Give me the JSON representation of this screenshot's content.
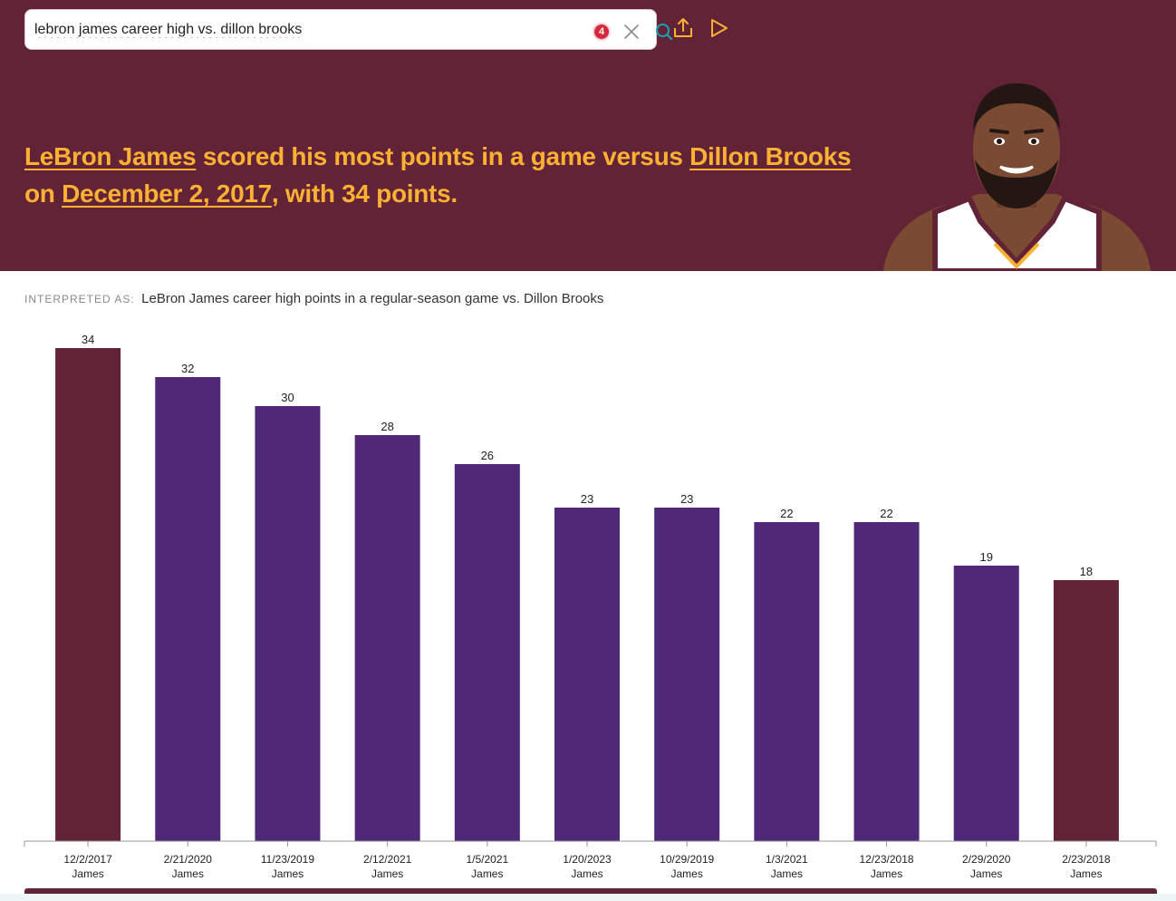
{
  "colors": {
    "hero_bg": "#632336",
    "accent": "#fcb034",
    "highlight_bar": "#632336",
    "bar": "#4f2877",
    "badge": "#d6283b",
    "search_icon": "#17a3b8"
  },
  "search": {
    "query": "lebron james career high vs. dillon brooks",
    "badge_count": "4",
    "clear_icon": "close-icon",
    "search_icon": "search-icon"
  },
  "toolbar": {
    "share_icon": "share-icon",
    "play_icon": "play-icon"
  },
  "headline": {
    "player_link": "LeBron James",
    "text1": " scored his most points in a game versus ",
    "opponent_link": "Dillon Brooks",
    "text2": "on ",
    "date_link": "December 2, 2017",
    "text3": ", with 34 points."
  },
  "interpreted": {
    "label": "INTERPRETED AS:",
    "text": "LeBron James career high points in a regular-season game vs. Dillon Brooks"
  },
  "chart_data": {
    "type": "bar",
    "categories": [
      "12/2/2017",
      "2/21/2020",
      "11/23/2019",
      "2/12/2021",
      "1/5/2021",
      "1/20/2023",
      "10/29/2019",
      "1/3/2021",
      "12/23/2018",
      "2/29/2020",
      "2/23/2018"
    ],
    "sublabels": [
      "James",
      "James",
      "James",
      "James",
      "James",
      "James",
      "James",
      "James",
      "James",
      "James",
      "James"
    ],
    "values": [
      34,
      32,
      30,
      28,
      26,
      23,
      23,
      22,
      22,
      19,
      18
    ],
    "highlight": [
      true,
      false,
      false,
      false,
      false,
      false,
      false,
      false,
      false,
      false,
      true
    ],
    "title": "",
    "xlabel": "",
    "ylabel": "",
    "ylim": [
      0,
      34
    ],
    "grid": false,
    "data_labels": true
  }
}
